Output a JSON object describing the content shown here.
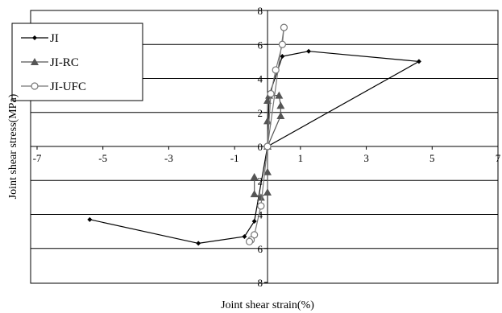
{
  "chart_data": {
    "type": "scatter",
    "xlabel": "Joint shear strain(%)",
    "ylabel": "Joint shear stress(MPa)",
    "xlim": [
      -7,
      7
    ],
    "ylim": [
      -8,
      8
    ],
    "x_ticks": [
      -7,
      -5,
      -3,
      -1,
      1,
      3,
      5,
      7
    ],
    "x_tick_labels": [
      "-7",
      "-5",
      "-3",
      "-1",
      "1",
      "3",
      "5",
      "7"
    ],
    "y_ticks": [
      8,
      6,
      4,
      2,
      0,
      -2,
      -4,
      -6,
      -8
    ],
    "y_tick_labels": [
      "8",
      "6",
      "4",
      "2",
      "0",
      "2",
      "4",
      "6",
      "8"
    ],
    "grid": "horizontal",
    "legend_position": "top-left",
    "series": [
      {
        "name": "JI",
        "marker": "diamond",
        "color": "#000000",
        "points": [
          [
            0.0,
            0.0
          ],
          [
            0.05,
            3.0
          ],
          [
            0.45,
            5.3
          ],
          [
            1.25,
            5.6
          ],
          [
            4.6,
            5.0
          ],
          [
            0.0,
            0.0
          ],
          [
            -0.4,
            -4.4
          ],
          [
            -0.7,
            -5.3
          ],
          [
            -2.1,
            -5.7
          ],
          [
            -5.4,
            -4.3
          ]
        ]
      },
      {
        "name": "JI-RC",
        "marker": "triangle",
        "color": "#555555",
        "points": [
          [
            0.0,
            0.0
          ],
          [
            0.0,
            1.5
          ],
          [
            0.0,
            2.7
          ],
          [
            0.05,
            3.0
          ],
          [
            0.35,
            3.0
          ],
          [
            0.4,
            2.4
          ],
          [
            0.4,
            1.8
          ],
          [
            0.0,
            0.0
          ],
          [
            0.0,
            -1.5
          ],
          [
            0.0,
            -2.7
          ],
          [
            -0.2,
            -3.0
          ],
          [
            -0.4,
            -2.8
          ],
          [
            -0.4,
            -1.8
          ]
        ]
      },
      {
        "name": "JI-UFC",
        "marker": "circle",
        "color": "#777777",
        "points": [
          [
            0.0,
            0.0
          ],
          [
            0.1,
            3.1
          ],
          [
            0.25,
            4.5
          ],
          [
            0.45,
            6.0
          ],
          [
            0.5,
            7.0
          ],
          [
            0.0,
            0.0
          ],
          [
            -0.2,
            -3.5
          ],
          [
            -0.4,
            -5.2
          ],
          [
            -0.5,
            -5.5
          ],
          [
            -0.55,
            -5.6
          ]
        ]
      }
    ]
  }
}
